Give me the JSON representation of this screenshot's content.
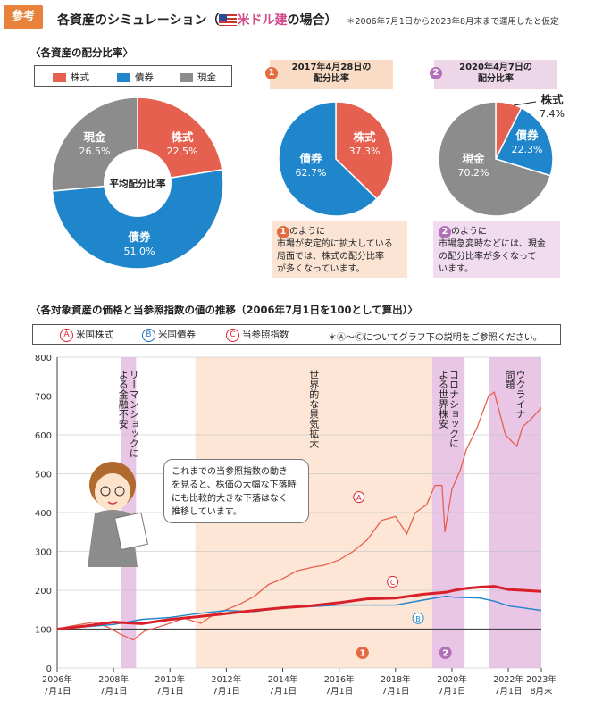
{
  "header": {
    "badge": "参考",
    "title": "各資産のシミュレーション（ 米ドル建の場合）",
    "note": "＊2006年7月1日から2023年8月末まで運用したと仮定"
  },
  "colors": {
    "stock": "#e6604f",
    "bond": "#1f86cc",
    "cash": "#8c8c8c",
    "accent": "#e8823a",
    "band_pink": "#e9c6e6",
    "band_orange": "#fde6d6"
  },
  "allocation": {
    "section_title": "〈各資産の配分比率〉",
    "legend": [
      "株式",
      "債券",
      "現金"
    ],
    "center_label": "平均配分比率",
    "panel1_title": "2017年4月28日の\n配分比率",
    "panel2_title": "2020年4月7日の\n配分比率",
    "marker1": "1",
    "marker2": "2",
    "note1_head": "のように",
    "note1_body": "市場が安定的に拡大している\n局面では、株式の配分比率\nが多くなっています。",
    "note2_head": "のように",
    "note2_body": "市場急変時などには、現金\nの配分比率が多くなって\nいます。"
  },
  "history": {
    "section_title": "〈各対象資産の価格と当参照指数の値の推移（2006年7月1日を100として算出）〉",
    "legend": [
      {
        "mark": "A",
        "label": "米国株式"
      },
      {
        "mark": "B",
        "label": "米国債券"
      },
      {
        "mark": "C",
        "label": "当参照指数"
      }
    ],
    "legend_note": "＊Ⓐ～Ⓒについてグラフ下の説明をご参照ください。",
    "speech": "これまでの当参照指数の動き\nを見ると、株価の大幅な下落時\nにも比較的大きな下落はなく\n推移しています。"
  },
  "chart_data": [
    {
      "type": "pie",
      "title": "平均配分比率",
      "labels": [
        "株式",
        "債券",
        "現金"
      ],
      "values": [
        22.5,
        51.0,
        26.5
      ],
      "donut": true
    },
    {
      "type": "pie",
      "title": "2017年4月28日の配分比率",
      "labels": [
        "株式",
        "債券"
      ],
      "values": [
        37.3,
        62.7
      ]
    },
    {
      "type": "pie",
      "title": "2020年4月7日の配分比率",
      "labels": [
        "株式",
        "債券",
        "現金"
      ],
      "values": [
        7.4,
        22.3,
        70.2
      ]
    },
    {
      "type": "line",
      "ylim": [
        0,
        800
      ],
      "yticks": [
        0,
        100,
        200,
        300,
        400,
        500,
        600,
        700,
        800
      ],
      "xlim": [
        2006.5,
        2023.67
      ],
      "xticks": [
        {
          "x": 2006.5,
          "l1": "2006年",
          "l2": "7月1日"
        },
        {
          "x": 2008.5,
          "l1": "2008年",
          "l2": "7月1日"
        },
        {
          "x": 2010.5,
          "l1": "2010年",
          "l2": "7月1日"
        },
        {
          "x": 2012.5,
          "l1": "2012年",
          "l2": "7月1日"
        },
        {
          "x": 2014.5,
          "l1": "2014年",
          "l2": "7月1日"
        },
        {
          "x": 2016.5,
          "l1": "2016年",
          "l2": "7月1日"
        },
        {
          "x": 2018.5,
          "l1": "2018年",
          "l2": "7月1日"
        },
        {
          "x": 2020.5,
          "l1": "2020年",
          "l2": "7月1日"
        },
        {
          "x": 2022.5,
          "l1": "2022年",
          "l2": "7月1日"
        },
        {
          "x": 2023.67,
          "l1": "2023年",
          "l2": "8月末"
        }
      ],
      "bands": [
        {
          "x0": 2008.75,
          "x1": 2009.3,
          "kind": "pink",
          "label": "リーマンショックに\nよる金融不安"
        },
        {
          "x0": 2011.4,
          "x1": 2019.8,
          "kind": "orange",
          "label": "世界的な景気拡大"
        },
        {
          "x0": 2019.8,
          "x1": 2020.95,
          "kind": "pink",
          "label": "コロナショックに\nよる世界株安"
        },
        {
          "x0": 2021.8,
          "x1": 2023.67,
          "kind": "pink",
          "label": "ウクライナ\n問題"
        }
      ],
      "markers": [
        {
          "x": 2017.33,
          "label": "1",
          "kind": "orange"
        },
        {
          "x": 2020.27,
          "label": "2",
          "kind": "pink"
        }
      ],
      "series": [
        {
          "mark": "A",
          "x": [
            2006.5,
            2007.0,
            2007.8,
            2008.3,
            2008.8,
            2009.2,
            2009.6,
            2010.3,
            2011.0,
            2011.6,
            2012.0,
            2012.5,
            2013.0,
            2013.5,
            2014.0,
            2014.5,
            2015.0,
            2015.6,
            2016.0,
            2016.5,
            2017.0,
            2017.5,
            2018.0,
            2018.5,
            2018.9,
            2019.2,
            2019.6,
            2019.9,
            2020.15,
            2020.25,
            2020.5,
            2020.8,
            2021.0,
            2021.4,
            2021.8,
            2022.0,
            2022.4,
            2022.8,
            2023.0,
            2023.3,
            2023.67
          ],
          "values": [
            100,
            108,
            118,
            105,
            85,
            72,
            95,
            110,
            128,
            115,
            135,
            150,
            165,
            185,
            215,
            230,
            250,
            260,
            265,
            278,
            300,
            330,
            380,
            390,
            345,
            400,
            420,
            470,
            470,
            350,
            460,
            510,
            560,
            620,
            700,
            710,
            600,
            570,
            620,
            640,
            670
          ]
        },
        {
          "mark": "B",
          "x": [
            2006.5,
            2007.5,
            2008.5,
            2009.5,
            2010.5,
            2011.5,
            2012.5,
            2013.5,
            2014.5,
            2015.5,
            2016.5,
            2017.5,
            2018.5,
            2019.5,
            2020.3,
            2020.6,
            2021.5,
            2022.0,
            2022.5,
            2023.0,
            2023.67
          ],
          "values": [
            100,
            106,
            112,
            125,
            130,
            140,
            148,
            145,
            155,
            158,
            162,
            162,
            162,
            175,
            185,
            182,
            180,
            172,
            160,
            155,
            148
          ]
        },
        {
          "mark": "C",
          "x": [
            2006.5,
            2007.5,
            2008.5,
            2009.5,
            2010.5,
            2011.5,
            2012.5,
            2013.5,
            2014.5,
            2015.5,
            2016.5,
            2017.5,
            2018.5,
            2019.5,
            2020.3,
            2020.6,
            2021.0,
            2021.5,
            2022.0,
            2022.5,
            2023.0,
            2023.67
          ],
          "values": [
            100,
            108,
            118,
            114,
            125,
            132,
            140,
            148,
            155,
            160,
            168,
            178,
            180,
            190,
            195,
            200,
            205,
            208,
            210,
            202,
            200,
            197
          ]
        }
      ]
    }
  ]
}
